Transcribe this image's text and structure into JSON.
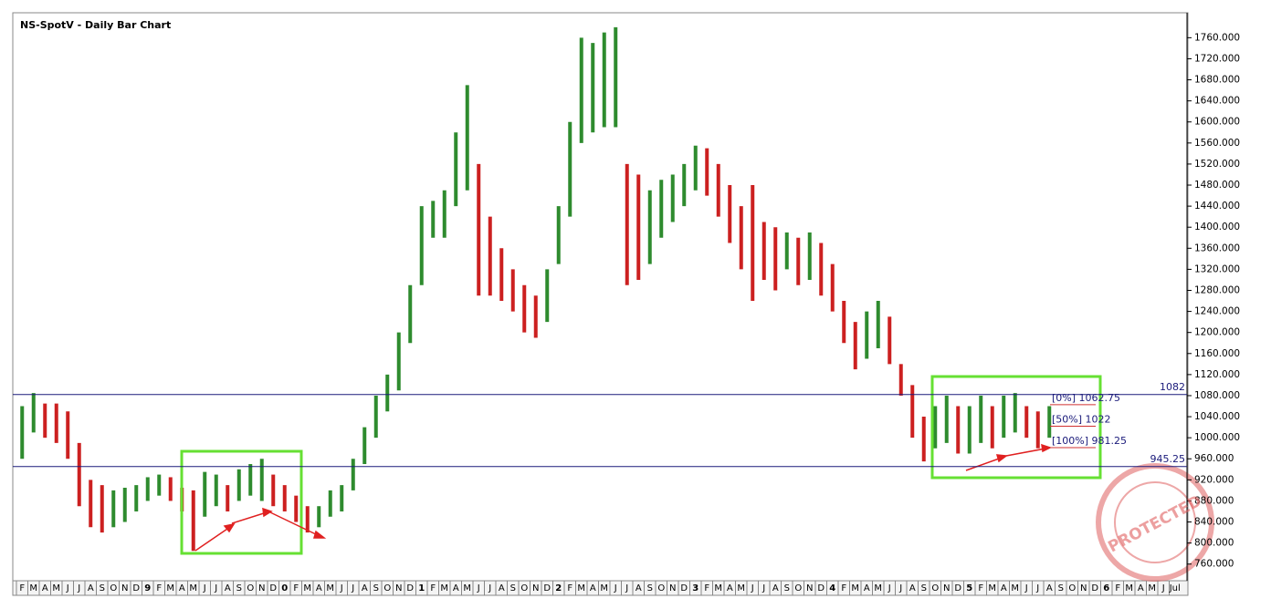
{
  "chart_data": {
    "type": "range_bar",
    "title": "NS-SpotV - Daily Bar Chart",
    "categories": [
      "F",
      "M",
      "A",
      "M",
      "J",
      "J",
      "A",
      "S",
      "O",
      "N",
      "D",
      "9",
      "F",
      "M",
      "A",
      "M",
      "J",
      "J",
      "A",
      "S",
      "O",
      "N",
      "D",
      "0",
      "F",
      "M",
      "A",
      "M",
      "J",
      "J",
      "A",
      "S",
      "O",
      "N",
      "D",
      "1",
      "F",
      "M",
      "A",
      "M",
      "J",
      "J",
      "A",
      "S",
      "O",
      "N",
      "D",
      "2",
      "F",
      "M",
      "A",
      "M",
      "J",
      "J",
      "A",
      "S",
      "O",
      "N",
      "D",
      "3",
      "F",
      "M",
      "A",
      "M",
      "J",
      "J",
      "A",
      "S",
      "O",
      "N",
      "D",
      "4",
      "F",
      "M",
      "A",
      "M",
      "J",
      "J",
      "A",
      "S",
      "O",
      "N",
      "D",
      "5",
      "F",
      "M",
      "A",
      "M",
      "J",
      "J",
      "A",
      "S",
      "O",
      "N",
      "D",
      "6",
      "F",
      "M",
      "A",
      "M",
      "J",
      "Jul"
    ],
    "highs": [
      1060,
      1085,
      1065,
      1065,
      1050,
      990,
      920,
      910,
      900,
      905,
      910,
      925,
      930,
      925,
      905,
      900,
      935,
      930,
      910,
      940,
      950,
      960,
      930,
      910,
      890,
      870,
      870,
      900,
      910,
      960,
      1020,
      1080,
      1120,
      1200,
      1290,
      1440,
      1450,
      1470,
      1580,
      1670,
      1520,
      1420,
      1360,
      1320,
      1290,
      1270,
      1320,
      1440,
      1600,
      1760,
      1750,
      1770,
      1780,
      1520,
      1500,
      1470,
      1490,
      1500,
      1520,
      1555,
      1550,
      1520,
      1480,
      1440,
      1480,
      1410,
      1400,
      1390,
      1380,
      1390,
      1370,
      1330,
      1260,
      1220,
      1240,
      1260,
      1230,
      1140,
      1100,
      1040,
      1060,
      1080,
      1060,
      1060,
      1080,
      1060,
      1080,
      1085,
      1060,
      1050,
      1060,
      null,
      null,
      null,
      null,
      null,
      null,
      null,
      null,
      null,
      null,
      null
    ],
    "lows": [
      960,
      1010,
      1000,
      990,
      960,
      870,
      830,
      820,
      830,
      840,
      860,
      880,
      890,
      880,
      860,
      785,
      850,
      870,
      860,
      880,
      890,
      880,
      870,
      860,
      840,
      820,
      830,
      850,
      860,
      900,
      950,
      1000,
      1050,
      1090,
      1180,
      1290,
      1380,
      1380,
      1440,
      1470,
      1270,
      1270,
      1260,
      1240,
      1200,
      1190,
      1220,
      1330,
      1420,
      1560,
      1580,
      1590,
      1590,
      1290,
      1300,
      1330,
      1380,
      1410,
      1440,
      1470,
      1460,
      1420,
      1370,
      1320,
      1260,
      1300,
      1280,
      1320,
      1290,
      1300,
      1270,
      1240,
      1180,
      1130,
      1150,
      1170,
      1140,
      1080,
      1000,
      955,
      980,
      990,
      970,
      970,
      990,
      980,
      1000,
      1010,
      1000,
      980,
      1000,
      null,
      null,
      null,
      null,
      null,
      null,
      null,
      null,
      null,
      null,
      null
    ],
    "up_color": "#2e8b2e",
    "down_color": "#cc2020",
    "ylim": [
      737,
      1797
    ],
    "yticks": [
      {
        "value": 760,
        "label": "760.000"
      },
      {
        "value": 800,
        "label": "800.000"
      },
      {
        "value": 840,
        "label": "840.000"
      },
      {
        "value": 880,
        "label": "880.000"
      },
      {
        "value": 920,
        "label": "920.000"
      },
      {
        "value": 960,
        "label": "960.000"
      },
      {
        "value": 1000,
        "label": "1000.000"
      },
      {
        "value": 1040,
        "label": "1040.000"
      },
      {
        "value": 1080,
        "label": "1080.000"
      },
      {
        "value": 1120,
        "label": "1120.000"
      },
      {
        "value": 1160,
        "label": "1160.000"
      },
      {
        "value": 1200,
        "label": "1200.000"
      },
      {
        "value": 1240,
        "label": "1240.000"
      },
      {
        "value": 1280,
        "label": "1280.000"
      },
      {
        "value": 1320,
        "label": "1320.000"
      },
      {
        "value": 1360,
        "label": "1360.000"
      },
      {
        "value": 1400,
        "label": "1400.000"
      },
      {
        "value": 1440,
        "label": "1440.000"
      },
      {
        "value": 1480,
        "label": "1480.000"
      },
      {
        "value": 1520,
        "label": "1520.000"
      },
      {
        "value": 1560,
        "label": "1560.000"
      },
      {
        "value": 1600,
        "label": "1600.000"
      },
      {
        "value": 1640,
        "label": "1640.000"
      },
      {
        "value": 1680,
        "label": "1680.000"
      },
      {
        "value": 1720,
        "label": "1720.000"
      },
      {
        "value": 1760,
        "label": "1760.000"
      }
    ],
    "hlines": [
      {
        "value": 1082,
        "color": "#1a1a7a"
      },
      {
        "value": 945.25,
        "color": "#1a1a7a"
      }
    ],
    "fib_levels": [
      {
        "label": "[0%]",
        "value": 1062.75
      },
      {
        "label": "[50%]",
        "value": 1022
      },
      {
        "label": "[100%]",
        "value": 981.25
      }
    ],
    "watermark": "PROTECTED"
  }
}
